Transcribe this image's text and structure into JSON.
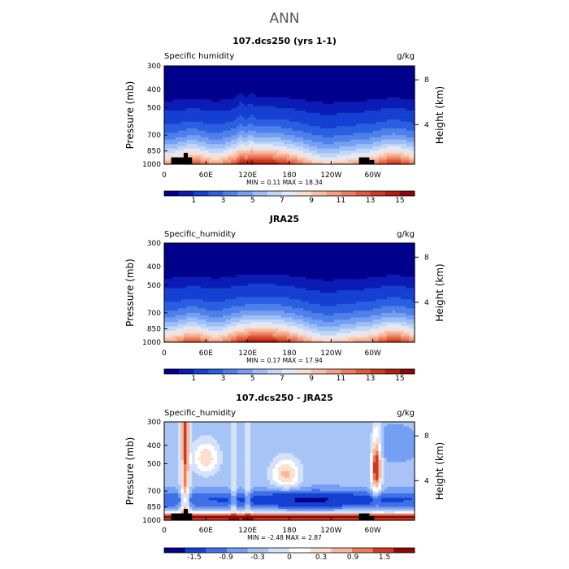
{
  "figure": {
    "title": "ANN"
  },
  "colors": {
    "abs_scale": [
      "#00008c",
      "#0a1cb4",
      "#1540d2",
      "#2a5fe0",
      "#4d80ea",
      "#749ff2",
      "#9dbef6",
      "#c3d6f8",
      "#e2e9f6",
      "#f7ddd2",
      "#f5c0a8",
      "#f2a184",
      "#eb7c5c",
      "#df5a3a",
      "#cc3b22",
      "#b01e10",
      "#8c0808"
    ],
    "diff_scale": [
      "#00008c",
      "#1540d2",
      "#4070e8",
      "#749ff2",
      "#a8c4f6",
      "#d4e3fa",
      "#ffffff",
      "#fbe0d2",
      "#f5b89a",
      "#eb7c5c",
      "#cc3b22",
      "#8c0808"
    ],
    "topography": "#000000"
  },
  "chart_data": [
    {
      "type": "heatmap",
      "title": "107.dcs250 (yrs 1-1)",
      "left_label": "Specific humidity",
      "right_label": "g/kg",
      "ylabel": "Pressure (mb)",
      "y2label": "Height (km)",
      "y_ticks": [
        "300",
        "400",
        "500",
        "700",
        "850",
        "1000"
      ],
      "y2_ticks": [
        "8",
        "4"
      ],
      "x_ticks": [
        "0",
        "60E",
        "120E",
        "180",
        "120W",
        "60W"
      ],
      "x_range": [
        0,
        360
      ],
      "y_range": [
        1000,
        300
      ],
      "min_max": "MIN =   0.11   MAX =  18.34",
      "colorbar_labels": [
        "1",
        "3",
        "5",
        "7",
        "9",
        "11",
        "13",
        "15"
      ],
      "field": "abs",
      "topography": [
        {
          "x0": 10,
          "x1": 40,
          "p_top": 920
        },
        {
          "x0": 28,
          "x1": 34,
          "p_top": 870
        },
        {
          "x0": 280,
          "x1": 295,
          "p_top": 920
        },
        {
          "x0": 295,
          "x1": 302,
          "p_top": 950
        }
      ]
    },
    {
      "type": "heatmap",
      "title": "JRA25",
      "left_label": "Specific_humidity",
      "right_label": "g/kg",
      "ylabel": "Pressure (mb)",
      "y2label": "Height (km)",
      "y_ticks": [
        "300",
        "400",
        "500",
        "700",
        "850",
        "1000"
      ],
      "y2_ticks": [
        "8",
        "4"
      ],
      "x_ticks": [
        "0",
        "60E",
        "120E",
        "180",
        "120W",
        "60W"
      ],
      "x_range": [
        0,
        360
      ],
      "y_range": [
        1000,
        300
      ],
      "min_max": "MIN =   0.17   MAX =  17.94",
      "colorbar_labels": [
        "1",
        "3",
        "5",
        "7",
        "9",
        "11",
        "13",
        "15"
      ],
      "field": "abs",
      "topography": []
    },
    {
      "type": "heatmap",
      "title": "107.dcs250 - JRA25",
      "left_label": "Specific_humidity",
      "right_label": "g/kg",
      "ylabel": "Pressure (mb)",
      "y2label": "Height (km)",
      "y_ticks": [
        "300",
        "400",
        "500",
        "700",
        "850",
        "1000"
      ],
      "y2_ticks": [
        "8",
        "4"
      ],
      "x_ticks": [
        "0",
        "60E",
        "120E",
        "180",
        "120W",
        "60W"
      ],
      "x_range": [
        0,
        360
      ],
      "y_range": [
        1000,
        300
      ],
      "min_max": "MIN =  -2.48   MAX =   2.87",
      "colorbar_labels": [
        "-1.5",
        "-0.9",
        "-0.3",
        "0",
        "0.3",
        "0.9",
        "1.5"
      ],
      "field": "diff",
      "topography": [
        {
          "x0": 10,
          "x1": 40,
          "p_top": 920
        },
        {
          "x0": 28,
          "x1": 34,
          "p_top": 870
        },
        {
          "x0": 280,
          "x1": 295,
          "p_top": 920
        },
        {
          "x0": 295,
          "x1": 302,
          "p_top": 950
        }
      ]
    }
  ]
}
